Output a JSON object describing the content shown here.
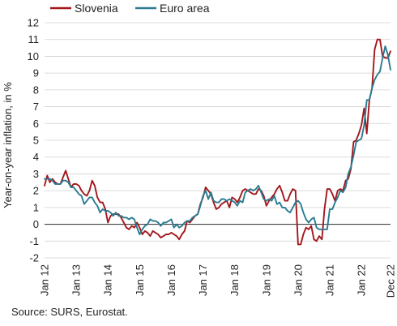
{
  "chart_data": {
    "type": "line",
    "ylabel": "Year-on-year inflation, in %",
    "ylim": [
      -2,
      12
    ],
    "y_ticks": [
      "-2",
      "-1",
      "0",
      "1",
      "2",
      "3",
      "4",
      "5",
      "6",
      "7",
      "8",
      "9",
      "10",
      "11",
      "12"
    ],
    "x_start": "2012-01",
    "x_ticks": [
      "Jan 12",
      "Jan 13",
      "Jan 14",
      "Jan 15",
      "Jan 16",
      "Jan 17",
      "Jan 18",
      "Jan 19",
      "Jan 20",
      "Jan 21",
      "Jan 22",
      "Dec 22"
    ],
    "legend_position": "top-left",
    "grid": "horizontal",
    "series": [
      {
        "name": "Slovenia",
        "color": "#a3171c",
        "values": [
          2.3,
          2.9,
          2.5,
          2.7,
          2.5,
          2.4,
          2.4,
          2.8,
          3.2,
          2.7,
          2.2,
          2.4,
          2.4,
          2.3,
          2.0,
          1.8,
          1.7,
          2.0,
          2.6,
          2.3,
          1.6,
          1.3,
          1.3,
          0.9,
          0.1,
          0.5,
          0.6,
          0.6,
          0.6,
          0.4,
          0.1,
          -0.2,
          -0.3,
          -0.1,
          -0.2,
          0.1,
          -0.2,
          -0.6,
          -0.4,
          -0.5,
          -0.7,
          -0.4,
          -0.5,
          -0.6,
          -0.8,
          -0.7,
          -0.6,
          -0.6,
          -0.5,
          -0.6,
          -0.7,
          -0.9,
          -0.6,
          -0.4,
          0.2,
          0.1,
          0.3,
          0.5,
          0.6,
          1.2,
          1.6,
          2.2,
          2.0,
          1.8,
          1.3,
          0.9,
          1.0,
          1.2,
          1.3,
          1.4,
          1.0,
          1.6,
          1.5,
          1.3,
          1.6,
          2.0,
          2.1,
          2.0,
          1.9,
          1.8,
          1.8,
          2.1,
          2.0,
          1.7,
          1.1,
          1.4,
          1.6,
          1.8,
          2.1,
          2.3,
          1.9,
          1.4,
          1.4,
          1.8,
          2.1,
          2.0,
          -1.2,
          -1.2,
          -0.6,
          -0.2,
          -0.3,
          -0.1,
          -0.9,
          -1.0,
          -0.7,
          -0.9,
          0.9,
          2.1,
          2.1,
          1.8,
          1.4,
          2.0,
          2.1,
          2.0,
          2.6,
          2.7,
          3.3,
          4.9,
          5.0,
          5.4,
          5.9,
          6.9,
          5.4,
          7.4,
          8.1,
          10.4,
          11.0,
          11.0,
          10.0,
          9.9,
          9.9,
          10.3
        ]
      },
      {
        "name": "Euro area",
        "color": "#2b7b91",
        "values": [
          2.7,
          2.7,
          2.7,
          2.6,
          2.4,
          2.4,
          2.4,
          2.6,
          2.6,
          2.5,
          2.2,
          2.2,
          2.0,
          1.8,
          1.7,
          1.2,
          1.4,
          1.6,
          1.6,
          1.3,
          1.1,
          0.7,
          0.9,
          0.8,
          0.8,
          0.7,
          0.5,
          0.7,
          0.5,
          0.5,
          0.4,
          0.4,
          0.3,
          0.4,
          0.3,
          -0.2,
          -0.6,
          -0.3,
          -0.1,
          0.0,
          0.3,
          0.2,
          0.2,
          0.1,
          -0.1,
          0.1,
          0.1,
          0.2,
          0.3,
          -0.2,
          0.0,
          -0.2,
          -0.1,
          0.1,
          0.2,
          0.2,
          0.4,
          0.5,
          0.6,
          1.1,
          1.7,
          2.0,
          1.5,
          1.9,
          1.4,
          1.3,
          1.3,
          1.5,
          1.5,
          1.4,
          1.5,
          1.4,
          1.3,
          1.1,
          1.4,
          1.3,
          1.9,
          2.0,
          2.1,
          2.0,
          2.1,
          2.3,
          1.9,
          1.5,
          1.4,
          1.5,
          1.4,
          1.7,
          1.2,
          1.3,
          1.0,
          1.0,
          0.8,
          0.7,
          1.0,
          1.3,
          1.4,
          1.2,
          0.7,
          0.3,
          0.1,
          0.3,
          0.4,
          -0.2,
          -0.3,
          -0.3,
          -0.3,
          -0.3,
          0.9,
          0.9,
          1.3,
          1.6,
          2.0,
          1.9,
          2.2,
          3.0,
          3.4,
          4.1,
          4.9,
          5.0,
          5.1,
          5.9,
          7.4,
          7.4,
          8.1,
          8.6,
          8.9,
          9.1,
          9.9,
          10.6,
          10.1,
          9.2
        ]
      }
    ]
  },
  "source": "Source: SURS, Eurostat."
}
